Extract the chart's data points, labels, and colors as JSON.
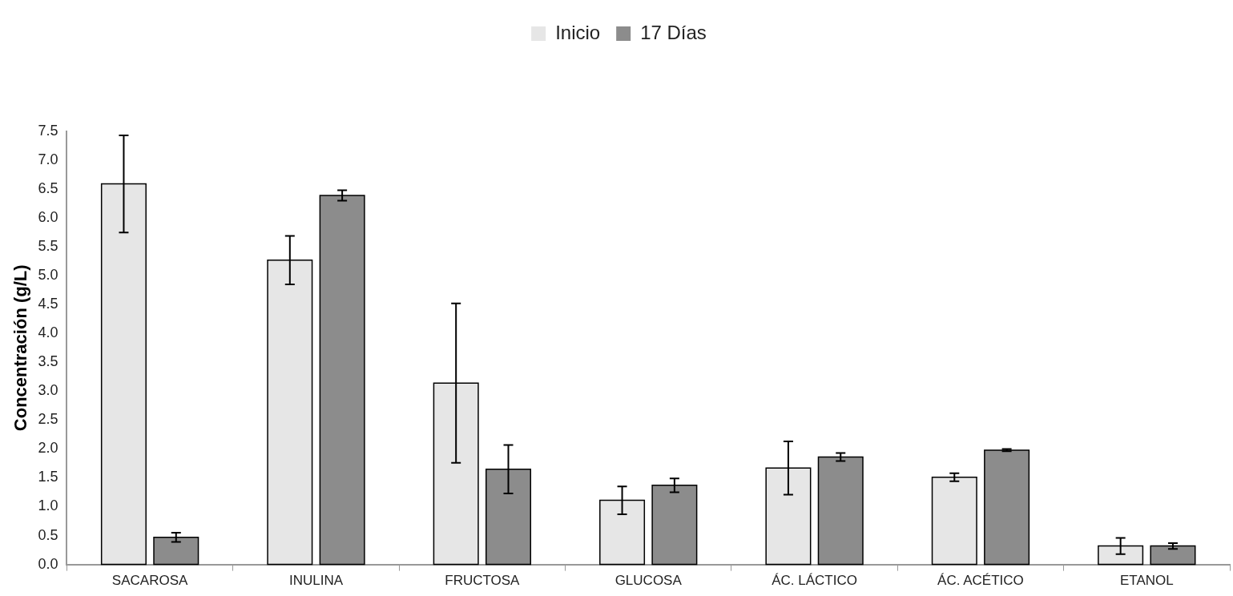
{
  "chart_data": {
    "type": "bar",
    "ylabel": "Concentración (g/L)",
    "categories": [
      "SACAROSA",
      "INULINA",
      "FRUCTOSA",
      "GLUCOSA",
      "ÁC. LÁCTICO",
      "ÁC. ACÉTICO",
      "ETANOL"
    ],
    "series": [
      {
        "name": "Inicio",
        "color": "#e6e6e6",
        "values": [
          6.59,
          5.27,
          3.14,
          1.11,
          1.67,
          1.51,
          0.32
        ],
        "errors": [
          0.84,
          0.42,
          1.38,
          0.24,
          0.46,
          0.07,
          0.14
        ]
      },
      {
        "name": "17 Días",
        "color": "#8c8c8c",
        "values": [
          0.47,
          6.39,
          1.65,
          1.37,
          1.86,
          1.98,
          0.32
        ],
        "errors": [
          0.08,
          0.09,
          0.42,
          0.12,
          0.07,
          0.02,
          0.05
        ]
      }
    ],
    "ylim": [
      0,
      7.5
    ],
    "yticks": [
      {
        "value": 0,
        "label": "0.0"
      },
      {
        "value": 0.5,
        "label": "0.5"
      },
      {
        "value": 1,
        "label": "1.0"
      },
      {
        "value": 1.5,
        "label": "1.5"
      },
      {
        "value": 2,
        "label": "2.0"
      },
      {
        "value": 2.5,
        "label": "2.5"
      },
      {
        "value": 3,
        "label": "3.0"
      },
      {
        "value": 3.5,
        "label": "3.5"
      },
      {
        "value": 4,
        "label": "4.0"
      },
      {
        "value": 4.5,
        "label": "4.5"
      },
      {
        "value": 5,
        "label": "5.0"
      },
      {
        "value": 5.5,
        "label": "5.5"
      },
      {
        "value": 6,
        "label": "6.0"
      },
      {
        "value": 6.5,
        "label": "6.5"
      },
      {
        "value": 7,
        "label": "7.0"
      },
      {
        "value": 7.5,
        "label": "7.5"
      }
    ],
    "grid": false,
    "legend": "top"
  }
}
